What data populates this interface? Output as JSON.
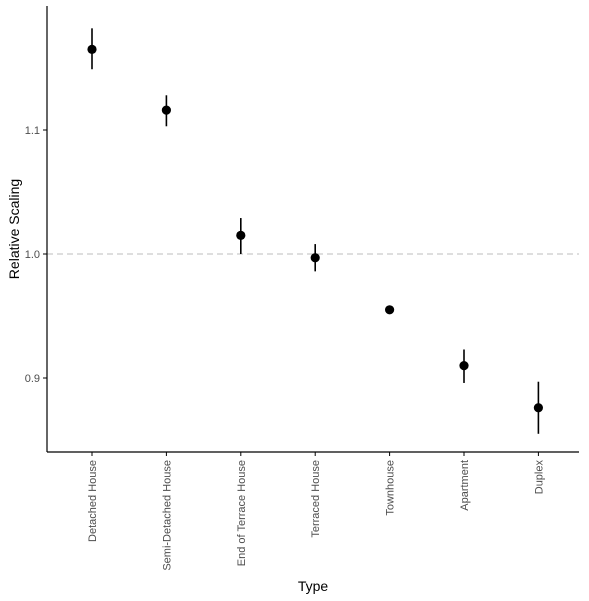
{
  "chart_data": {
    "type": "scatter",
    "title": "",
    "xlabel": "Type",
    "ylabel": "Relative Scaling",
    "categories": [
      "Detached House",
      "Semi-Detached House",
      "End of Terrace House",
      "Terraced House",
      "Townhouse",
      "Apartment",
      "Duplex"
    ],
    "values": [
      1.165,
      1.116,
      1.015,
      0.997,
      0.955,
      0.91,
      0.876
    ],
    "error_low": [
      1.149,
      1.103,
      1.0,
      0.986,
      0.955,
      0.896,
      0.855
    ],
    "error_high": [
      1.182,
      1.128,
      1.029,
      1.008,
      0.955,
      0.923,
      0.897
    ],
    "ylim": [
      0.84,
      1.19
    ],
    "yticks": [
      0.9,
      1.0,
      1.1
    ],
    "ytick_labels": [
      "0.9",
      "1.0",
      "1.1"
    ],
    "reference_line": {
      "y": 1.0,
      "style": "dashed"
    },
    "grid": false,
    "colors": {
      "point": "#000000",
      "reference": "#bdbdbd",
      "axis": "#000000"
    }
  }
}
